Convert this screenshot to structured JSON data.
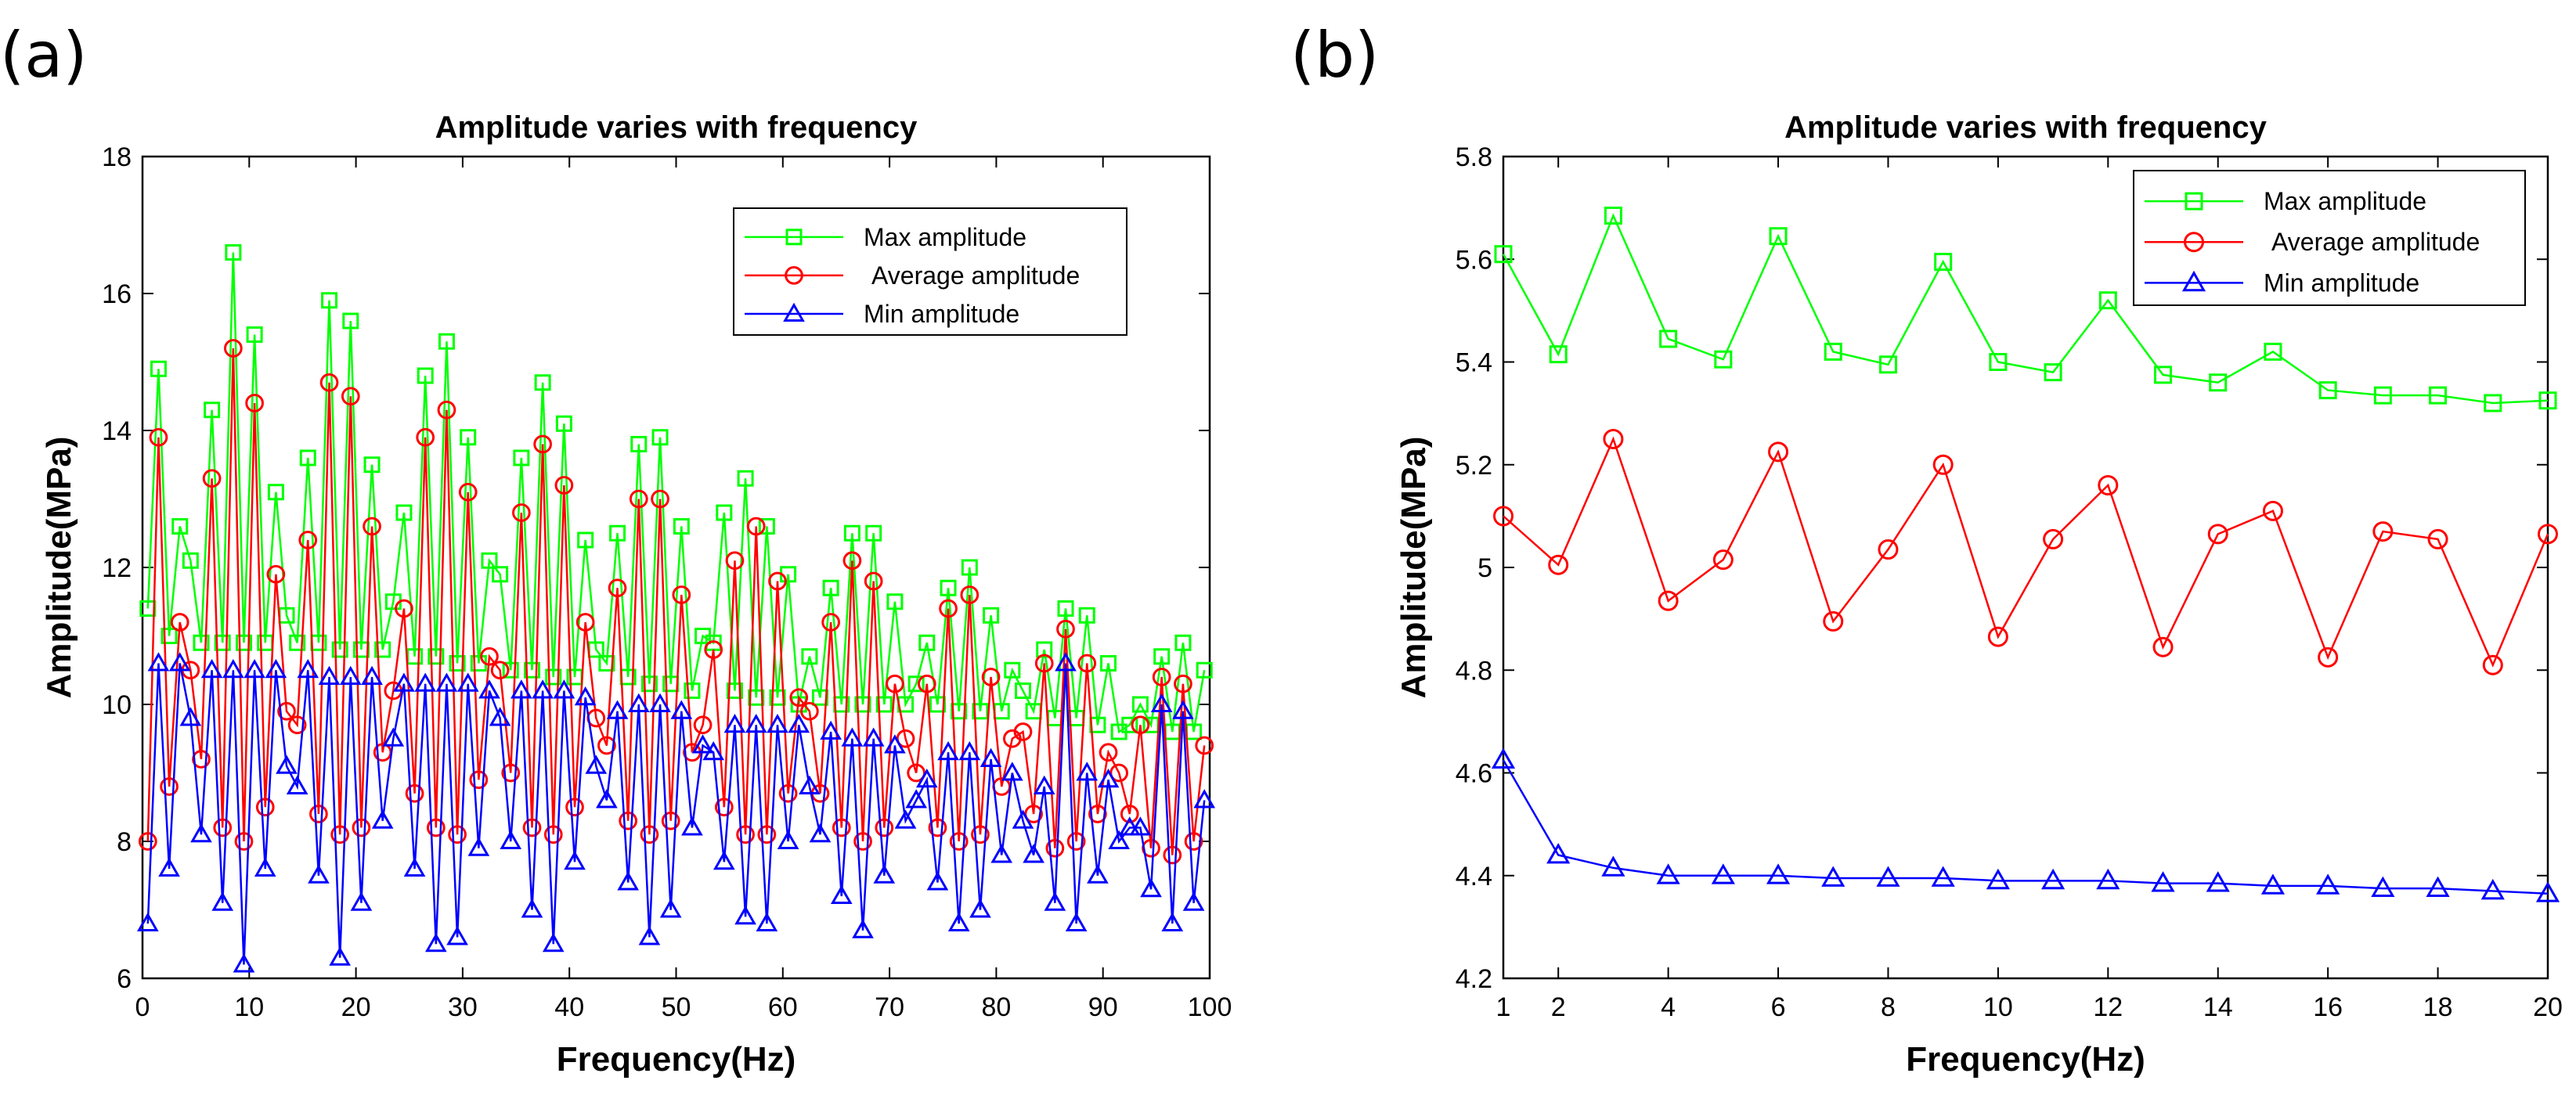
{
  "chart_data": [
    {
      "type": "line",
      "panel_label": "(a)",
      "title": "Amplitude varies with frequency",
      "xlabel": "Frequency(Hz)",
      "ylabel": "Amplitude(MPa)",
      "xlim": [
        0,
        100
      ],
      "ylim": [
        6,
        18
      ],
      "xticks": [
        0,
        10,
        20,
        30,
        40,
        50,
        60,
        70,
        80,
        90,
        100
      ],
      "yticks": [
        6,
        8,
        10,
        12,
        14,
        16,
        18
      ],
      "legend_position": "top-right",
      "x": [
        0.5,
        1.5,
        2.5,
        3.5,
        4.5,
        5.5,
        6.5,
        7.5,
        8.5,
        9.5,
        10.5,
        11.5,
        12.5,
        13.5,
        14.5,
        15.5,
        16.5,
        17.5,
        18.5,
        19.5,
        20.5,
        21.5,
        22.5,
        23.5,
        24.5,
        25.5,
        26.5,
        27.5,
        28.5,
        29.5,
        30.5,
        31.5,
        32.5,
        33.5,
        34.5,
        35.5,
        36.5,
        37.5,
        38.5,
        39.5,
        40.5,
        41.5,
        42.5,
        43.5,
        44.5,
        45.5,
        46.5,
        47.5,
        48.5,
        49.5,
        50.5,
        51.5,
        52.5,
        53.5,
        54.5,
        55.5,
        56.5,
        57.5,
        58.5,
        59.5,
        60.5,
        61.5,
        62.5,
        63.5,
        64.5,
        65.5,
        66.5,
        67.5,
        68.5,
        69.5,
        70.5,
        71.5,
        72.5,
        73.5,
        74.5,
        75.5,
        76.5,
        77.5,
        78.5,
        79.5,
        80.5,
        81.5,
        82.5,
        83.5,
        84.5,
        85.5,
        86.5,
        87.5,
        88.5,
        89.5,
        90.5,
        91.5,
        92.5,
        93.5,
        94.5,
        95.5,
        96.5,
        97.5,
        98.5,
        99.5
      ],
      "series": [
        {
          "name": "Max amplitude",
          "color": "#00ff00",
          "marker": "square",
          "values": [
            11.4,
            14.9,
            11.0,
            12.6,
            12.1,
            10.9,
            14.3,
            10.9,
            16.6,
            10.9,
            15.4,
            10.9,
            13.1,
            11.3,
            10.9,
            13.6,
            10.9,
            15.9,
            10.8,
            15.6,
            10.8,
            13.5,
            10.8,
            11.5,
            12.8,
            10.7,
            14.8,
            10.7,
            15.3,
            10.6,
            13.9,
            10.6,
            12.1,
            11.9,
            10.5,
            13.6,
            10.5,
            14.7,
            10.4,
            14.1,
            10.4,
            12.4,
            10.8,
            10.6,
            12.5,
            10.4,
            13.8,
            10.3,
            13.9,
            10.3,
            12.6,
            10.2,
            11.0,
            10.9,
            12.8,
            10.2,
            13.3,
            10.1,
            12.6,
            10.1,
            11.9,
            10.0,
            10.7,
            10.1,
            11.7,
            10.0,
            12.5,
            10.0,
            12.5,
            10.0,
            11.5,
            10.0,
            10.3,
            10.9,
            10.0,
            11.7,
            9.9,
            12.0,
            9.9,
            11.3,
            9.9,
            10.5,
            10.2,
            9.9,
            10.8,
            9.8,
            11.4,
            9.8,
            11.3,
            9.7,
            10.6,
            9.6,
            9.7,
            10.0,
            9.7,
            10.7,
            9.6,
            10.9,
            9.6,
            10.5
          ]
        },
        {
          "name": "Average amplitude",
          "color": "#ff0000",
          "marker": "circle",
          "values": [
            8.0,
            13.9,
            8.8,
            11.2,
            10.5,
            9.2,
            13.3,
            8.2,
            15.2,
            8.0,
            14.4,
            8.5,
            11.9,
            9.9,
            9.7,
            12.4,
            8.4,
            14.7,
            8.1,
            14.5,
            8.2,
            12.6,
            9.3,
            10.2,
            11.4,
            8.7,
            13.9,
            8.2,
            14.3,
            8.1,
            13.1,
            8.9,
            10.7,
            10.5,
            9.0,
            12.8,
            8.2,
            13.8,
            8.1,
            13.2,
            8.5,
            11.2,
            9.8,
            9.4,
            11.7,
            8.3,
            13.0,
            8.1,
            13.0,
            8.3,
            11.6,
            9.3,
            9.7,
            10.8,
            8.5,
            12.1,
            8.1,
            12.6,
            8.1,
            11.8,
            8.7,
            10.1,
            9.9,
            8.7,
            11.2,
            8.2,
            12.1,
            8.0,
            11.8,
            8.2,
            10.3,
            9.5,
            9.0,
            10.3,
            8.2,
            11.4,
            8.0,
            11.6,
            8.1,
            10.4,
            8.8,
            9.5,
            9.6,
            8.4,
            10.6,
            7.9,
            11.1,
            8.0,
            10.6,
            8.4,
            9.3,
            9.0,
            8.4,
            9.7,
            7.9,
            10.4,
            7.8,
            10.3,
            8.0,
            9.4
          ]
        },
        {
          "name": "Min amplitude",
          "color": "#0000ff",
          "marker": "triangle",
          "values": [
            6.8,
            10.6,
            7.6,
            10.6,
            9.8,
            8.1,
            10.5,
            7.1,
            10.5,
            6.2,
            10.5,
            7.6,
            10.5,
            9.1,
            8.8,
            10.5,
            7.5,
            10.4,
            6.3,
            10.4,
            7.1,
            10.4,
            8.3,
            9.5,
            10.3,
            7.6,
            10.3,
            6.5,
            10.3,
            6.6,
            10.3,
            7.9,
            10.2,
            9.8,
            8.0,
            10.2,
            7.0,
            10.2,
            6.5,
            10.2,
            7.7,
            10.1,
            9.1,
            8.6,
            9.9,
            7.4,
            10.0,
            6.6,
            10.0,
            7.0,
            9.9,
            8.2,
            9.4,
            9.3,
            7.7,
            9.7,
            6.9,
            9.7,
            6.8,
            9.7,
            8.0,
            9.7,
            8.8,
            8.1,
            9.6,
            7.2,
            9.5,
            6.7,
            9.5,
            7.5,
            9.4,
            8.3,
            8.6,
            8.9,
            7.4,
            9.3,
            6.8,
            9.3,
            7.0,
            9.2,
            7.8,
            9.0,
            8.3,
            7.8,
            8.8,
            7.1,
            10.6,
            6.8,
            9.0,
            7.5,
            8.9,
            8.0,
            8.2,
            8.2,
            7.3,
            10.0,
            6.8,
            9.9,
            7.1,
            8.6
          ]
        }
      ]
    },
    {
      "type": "line",
      "panel_label": "(b)",
      "title": "Amplitude varies with frequency",
      "xlabel": "Frequency(Hz)",
      "ylabel": "Amplitude(MPa)",
      "xlim": [
        1,
        20
      ],
      "ylim": [
        4.2,
        5.8
      ],
      "xticks": [
        1,
        2,
        4,
        6,
        8,
        10,
        12,
        14,
        16,
        18,
        20
      ],
      "yticks": [
        4.2,
        4.4,
        4.6,
        4.8,
        5,
        5.2,
        5.4,
        5.6,
        5.8
      ],
      "ytick_labels": [
        "4.2",
        "4.4",
        "4.6",
        "4.8",
        "5",
        "5.2",
        "5.4",
        "5.6",
        "5.8"
      ],
      "legend_position": "top-right",
      "x": [
        1,
        2,
        3,
        4,
        5,
        6,
        7,
        8,
        9,
        10,
        11,
        12,
        13,
        14,
        15,
        16,
        17,
        18,
        19,
        20
      ],
      "series": [
        {
          "name": "Max amplitude",
          "color": "#00ff00",
          "marker": "square",
          "values": [
            5.61,
            5.415,
            5.685,
            5.445,
            5.405,
            5.645,
            5.42,
            5.395,
            5.595,
            5.4,
            5.38,
            5.52,
            5.375,
            5.36,
            5.42,
            5.345,
            5.335,
            5.335,
            5.32,
            5.325
          ]
        },
        {
          "name": "Average amplitude",
          "color": "#ff0000",
          "marker": "circle",
          "values": [
            5.1,
            5.005,
            5.25,
            4.935,
            5.015,
            5.225,
            4.895,
            5.035,
            5.2,
            4.865,
            5.055,
            5.16,
            4.845,
            5.065,
            5.11,
            4.825,
            5.07,
            5.055,
            4.81,
            5.065
          ]
        },
        {
          "name": "Min amplitude",
          "color": "#0000ff",
          "marker": "triangle",
          "values": [
            4.625,
            4.44,
            4.415,
            4.4,
            4.4,
            4.4,
            4.395,
            4.395,
            4.395,
            4.39,
            4.39,
            4.39,
            4.385,
            4.385,
            4.38,
            4.38,
            4.375,
            4.375,
            4.37,
            4.365
          ]
        }
      ]
    }
  ]
}
